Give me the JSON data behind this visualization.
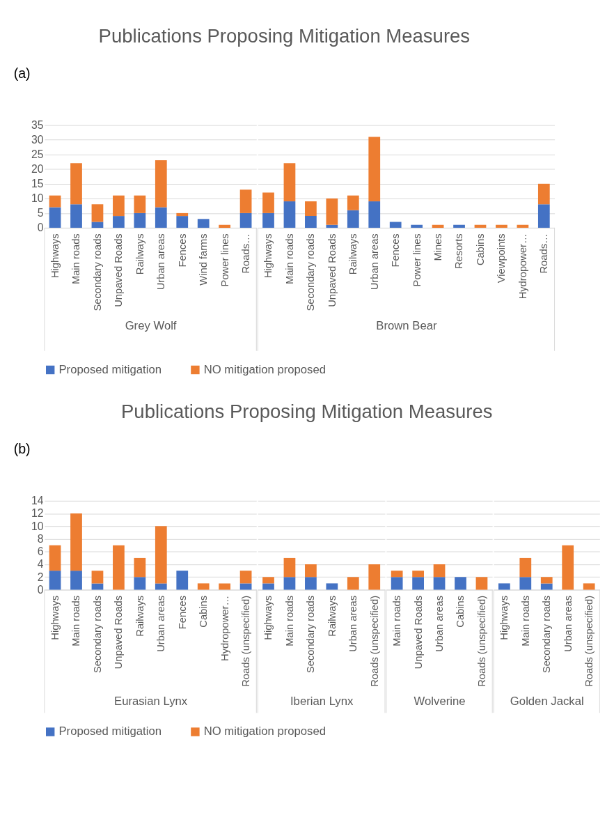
{
  "chart_data": [
    {
      "type": "bar",
      "title": "Publications Proposing Mitigation Measures",
      "annotations": [
        "(a)"
      ],
      "xlabel": "Grey Wolf",
      "stacked": true,
      "grid": "y",
      "legend": "bottom",
      "categories": [
        "Highways",
        "Main roads",
        "Secondary roads",
        "Unpaved Roads",
        "Railways",
        "Urban areas",
        "Fences",
        "Wind farms",
        "Power lines",
        "Roads…"
      ],
      "ylim": [
        0,
        35
      ],
      "yticks": [
        0,
        5,
        10,
        15,
        20,
        25,
        30,
        35
      ],
      "series": [
        {
          "name": "Proposed mitigation",
          "color": "#4472c4",
          "values": [
            7,
            8,
            2,
            4,
            5,
            7,
            4,
            3,
            0,
            5
          ]
        },
        {
          "name": "NO mitigation proposed",
          "color": "#ed7d31",
          "values": [
            4,
            14,
            6,
            7,
            6,
            16,
            1,
            0,
            1,
            8
          ]
        }
      ]
    },
    {
      "type": "bar",
      "xlabel": "Brown Bear",
      "stacked": true,
      "grid": "y",
      "tick_labels": "x",
      "legend": "bottom",
      "categories": [
        "Highways",
        "Main roads",
        "Secondary roads",
        "Unpaved Roads",
        "Railways",
        "Urban areas",
        "Fences",
        "Power lines",
        "Mines",
        "Resorts",
        "Cabins",
        "Viewpoints",
        "Hydropower…",
        "Roads…"
      ],
      "ylim": [
        0,
        35
      ],
      "yticks": [
        0,
        5,
        10,
        15,
        20,
        25,
        30,
        35
      ],
      "series": [
        {
          "name": "Proposed mitigation",
          "color": "#4472c4",
          "values": [
            5,
            9,
            4,
            1,
            6,
            9,
            2,
            1,
            0,
            1,
            0,
            0,
            0,
            8
          ]
        },
        {
          "name": "NO mitigation proposed",
          "color": "#ed7d31",
          "values": [
            7,
            13,
            5,
            9,
            5,
            22,
            0,
            0,
            1,
            0,
            1,
            1,
            1,
            7
          ]
        }
      ]
    },
    {
      "type": "bar",
      "title": "Publications Proposing Mitigation Measures",
      "annotations": [
        "(b)"
      ],
      "xlabel": "Eurasian Lynx",
      "stacked": true,
      "grid": "y",
      "legend": "bottom",
      "categories": [
        "Highways",
        "Main roads",
        "Secondary roads",
        "Unpaved Roads",
        "Railways",
        "Urban areas",
        "Fences",
        "Cabins",
        "Hydropower…",
        "Roads (unspecified)"
      ],
      "ylim": [
        0,
        14
      ],
      "yticks": [
        0,
        2,
        4,
        6,
        8,
        10,
        12,
        14
      ],
      "series": [
        {
          "name": "Proposed mitigation",
          "color": "#4472c4",
          "values": [
            3,
            3,
            1,
            0,
            2,
            1,
            3,
            0,
            0,
            1
          ]
        },
        {
          "name": "NO mitigation proposed",
          "color": "#ed7d31",
          "values": [
            4,
            9,
            2,
            7,
            3,
            9,
            0,
            1,
            1,
            2
          ]
        }
      ]
    },
    {
      "type": "bar",
      "xlabel": "Iberian Lynx",
      "stacked": true,
      "grid": "y",
      "tick_labels": "x",
      "legend": "bottom",
      "categories": [
        "Highways",
        "Main roads",
        "Secondary roads",
        "Railways",
        "Urban areas",
        "Roads (unspecified)"
      ],
      "ylim": [
        0,
        14
      ],
      "yticks": [
        0,
        2,
        4,
        6,
        8,
        10,
        12,
        14
      ],
      "series": [
        {
          "name": "Proposed mitigation",
          "color": "#4472c4",
          "values": [
            1,
            2,
            2,
            1,
            0,
            0
          ]
        },
        {
          "name": "NO mitigation proposed",
          "color": "#ed7d31",
          "values": [
            1,
            3,
            2,
            0,
            2,
            4
          ]
        }
      ]
    },
    {
      "type": "bar",
      "xlabel": "Wolverine",
      "stacked": true,
      "grid": "y",
      "tick_labels": "x",
      "legend": "bottom",
      "categories": [
        "Main roads",
        "Unpaved Roads",
        "Urban areas",
        "Cabins",
        "Roads (unspecified)"
      ],
      "ylim": [
        0,
        14
      ],
      "yticks": [
        0,
        2,
        4,
        6,
        8,
        10,
        12,
        14
      ],
      "series": [
        {
          "name": "Proposed mitigation",
          "color": "#4472c4",
          "values": [
            2,
            2,
            2,
            2,
            0
          ]
        },
        {
          "name": "NO mitigation proposed",
          "color": "#ed7d31",
          "values": [
            1,
            1,
            2,
            0,
            2
          ]
        }
      ]
    },
    {
      "type": "bar",
      "xlabel": "Golden Jackal",
      "stacked": true,
      "grid": "y",
      "tick_labels": "x",
      "legend": "bottom",
      "categories": [
        "Highways",
        "Main roads",
        "Secondary roads",
        "Urban areas",
        "Roads (unspecified)"
      ],
      "ylim": [
        0,
        14
      ],
      "yticks": [
        0,
        2,
        4,
        6,
        8,
        10,
        12,
        14
      ],
      "series": [
        {
          "name": "Proposed mitigation",
          "color": "#4472c4",
          "values": [
            1,
            2,
            1,
            0,
            0
          ]
        },
        {
          "name": "NO mitigation proposed",
          "color": "#ed7d31",
          "values": [
            0,
            3,
            1,
            7,
            1
          ]
        }
      ]
    }
  ]
}
